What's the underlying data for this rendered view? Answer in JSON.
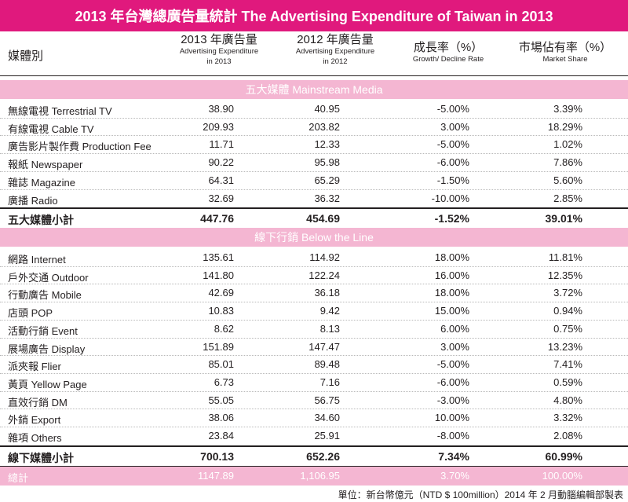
{
  "title": "2013 年台灣總廣告量統計 The Advertising Expenditure of Taiwan in 2013",
  "headers": {
    "media": "媒體別",
    "col2013": {
      "zh": "2013 年廣告量",
      "en1": "Advertising Expenditure",
      "en2": "in 2013"
    },
    "col2012": {
      "zh": "2012 年廣告量",
      "en1": "Advertising Expenditure",
      "en2": "in 2012"
    },
    "growth": {
      "zh": "成長率（%）",
      "en1": "Growth/ Decline Rate"
    },
    "share": {
      "zh": "市場佔有率（%）",
      "en1": "Market Share"
    }
  },
  "section1": {
    "label": "五大媒體 Mainstream Media",
    "rows": [
      [
        "無線電視 Terrestrial TV",
        "38.90",
        "40.95",
        "-5.00%",
        "3.39%"
      ],
      [
        "有線電視 Cable TV",
        "209.93",
        "203.82",
        "3.00%",
        "18.29%"
      ],
      [
        "廣告影片製作費 Production Fee",
        "11.71",
        "12.33",
        "-5.00%",
        "1.02%"
      ],
      [
        "報紙 Newspaper",
        "90.22",
        "95.98",
        "-6.00%",
        "7.86%"
      ],
      [
        "雜誌 Magazine",
        "64.31",
        "65.29",
        "-1.50%",
        "5.60%"
      ],
      [
        "廣播 Radio",
        "32.69",
        "36.32",
        "-10.00%",
        "2.85%"
      ]
    ],
    "subtotal": [
      "五大媒體小計",
      "447.76",
      "454.69",
      "-1.52%",
      "39.01%"
    ]
  },
  "section2": {
    "label": "線下行銷 Below the Line",
    "rows": [
      [
        "網路 Internet",
        "135.61",
        "114.92",
        "18.00%",
        "11.81%"
      ],
      [
        "戶外交通 Outdoor",
        "141.80",
        "122.24",
        "16.00%",
        "12.35%"
      ],
      [
        "行動廣告 Mobile",
        "42.69",
        "36.18",
        "18.00%",
        "3.72%"
      ],
      [
        "店頭 POP",
        "10.83",
        "9.42",
        "15.00%",
        "0.94%"
      ],
      [
        "活動行銷 Event",
        "8.62",
        "8.13",
        "6.00%",
        "0.75%"
      ],
      [
        "展場廣告 Display",
        "151.89",
        "147.47",
        "3.00%",
        "13.23%"
      ],
      [
        "派夾報 Flier",
        "85.01",
        "89.48",
        "-5.00%",
        "7.41%"
      ],
      [
        "黃頁 Yellow Page",
        "6.73",
        "7.16",
        "-6.00%",
        "0.59%"
      ],
      [
        "直效行銷 DM",
        "55.05",
        "56.75",
        "-3.00%",
        "4.80%"
      ],
      [
        "外銷  Export",
        "38.06",
        "34.60",
        "10.00%",
        "3.32%"
      ],
      [
        "雜項 Others",
        "23.84",
        "25.91",
        "-8.00%",
        "2.08%"
      ]
    ],
    "subtotal": [
      "線下媒體小計",
      "700.13",
      "652.26",
      "7.34%",
      "60.99%"
    ]
  },
  "total": [
    "總計",
    "1147.89",
    "1,106.95",
    "3.70%",
    "100.00%"
  ],
  "footnote": "單位：新台幣億元（NTD $ 100million）2014 年 2 月動腦編輯部製表",
  "colors": {
    "accent": "#e0197d",
    "band": "#f4b6d2"
  }
}
